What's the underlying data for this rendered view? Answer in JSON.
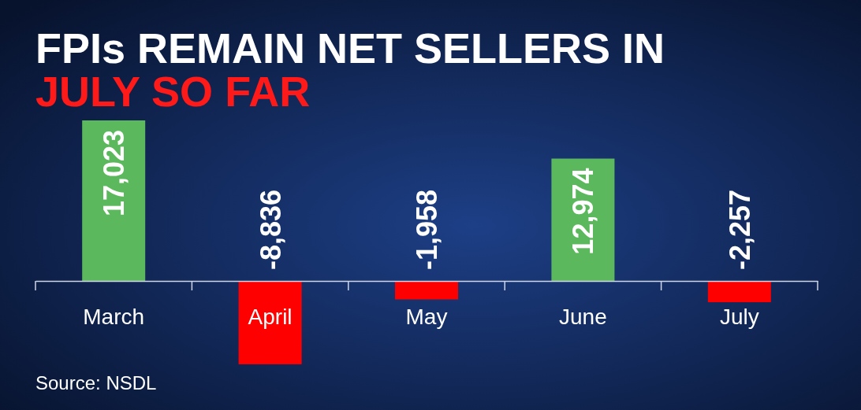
{
  "chart_data": {
    "type": "bar",
    "title": "FPIs REMAIN NET SELLERS IN JULY SO FAR",
    "categories": [
      "March",
      "April",
      "May",
      "June",
      "July"
    ],
    "values": [
      17023,
      -8836,
      -1958,
      12974,
      -2257
    ],
    "colors": [
      "#5cb85c",
      "#ff0000",
      "#ff0000",
      "#5cb85c",
      "#ff0000"
    ],
    "value_labels": [
      "17,023",
      "-8,836",
      "-1,958",
      "12,974",
      "-2,257"
    ],
    "annotations": [
      "Source: NSDL"
    ]
  }
}
